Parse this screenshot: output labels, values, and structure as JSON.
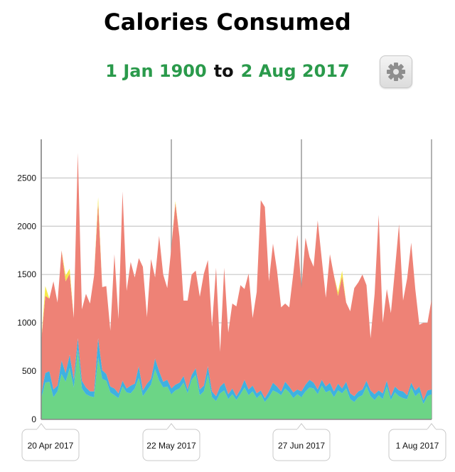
{
  "header": {
    "title": "Calories Consumed",
    "start_date": "1 Jan 1900",
    "connector": "to",
    "end_date": "2 Aug 2017"
  },
  "settings_button": {
    "icon": "gear-icon"
  },
  "colors": {
    "date_text": "#2a9a4b",
    "series_green": "#6cd586",
    "series_blue": "#3fb1e0",
    "series_red": "#ee8276",
    "series_yellow": "#f5ea4a",
    "grid": "#c9c9c9"
  },
  "chart_data": {
    "type": "area",
    "stacked": true,
    "grid": true,
    "ylim": [
      0,
      2900
    ],
    "yticks": [
      0,
      500,
      1000,
      1500,
      2000,
      2500
    ],
    "date_labels": [
      {
        "text": "20 Apr 2017",
        "index": 0
      },
      {
        "text": "22 May 2017",
        "index": 32
      },
      {
        "text": "27 Jun 2017",
        "index": 64
      },
      {
        "text": "1 Aug 2017",
        "index": 96
      }
    ],
    "series": [
      {
        "color": "#6cd586",
        "values": [
          220,
          380,
          390,
          230,
          290,
          470,
          390,
          530,
          330,
          720,
          320,
          260,
          240,
          230,
          640,
          420,
          400,
          280,
          250,
          220,
          340,
          280,
          270,
          320,
          430,
          240,
          300,
          360,
          520,
          400,
          330,
          340,
          260,
          300,
          320,
          380,
          270,
          410,
          460,
          250,
          290,
          460,
          230,
          190,
          270,
          300,
          210,
          260,
          200,
          260,
          330,
          250,
          290,
          220,
          260,
          180,
          230,
          300,
          280,
          250,
          320,
          280,
          220,
          260,
          230,
          290,
          330,
          320,
          260,
          350,
          280,
          300,
          230,
          300,
          270,
          320,
          210,
          180,
          230,
          250,
          340,
          240,
          200,
          250,
          210,
          340,
          200,
          280,
          240,
          220,
          210,
          330,
          240,
          280,
          160,
          240,
          260
        ]
      },
      {
        "color": "#3fb1e0",
        "values": [
          40,
          100,
          110,
          80,
          60,
          140,
          90,
          140,
          80,
          120,
          80,
          70,
          50,
          60,
          200,
          90,
          70,
          60,
          70,
          50,
          60,
          40,
          80,
          50,
          120,
          60,
          70,
          60,
          110,
          100,
          60,
          70,
          60,
          60,
          60,
          70,
          40,
          50,
          70,
          60,
          60,
          90,
          60,
          50,
          70,
          80,
          50,
          60,
          40,
          50,
          80,
          60,
          60,
          50,
          40,
          40,
          60,
          80,
          60,
          40,
          70,
          60,
          60,
          50,
          60,
          70,
          80,
          60,
          50,
          60,
          60,
          80,
          60,
          70,
          50,
          70,
          60,
          60,
          60,
          60,
          60,
          60,
          60,
          50,
          60,
          60,
          40,
          60,
          60,
          70,
          40,
          50,
          60,
          60,
          40,
          60,
          50
        ]
      },
      {
        "color": "#ee8276",
        "values": [
          550,
          800,
          750,
          1120,
          860,
          1140,
          950,
          840,
          640,
          1920,
          740,
          970,
          910,
          1200,
          1400,
          860,
          910,
          580,
          1390,
          770,
          1960,
          1010,
          1280,
          1100,
          1120,
          1280,
          690,
          1240,
          840,
          1400,
          1110,
          950,
          1460,
          1880,
          1510,
          780,
          920,
          1040,
          1010,
          960,
          1160,
          1100,
          670,
          1330,
          360,
          1190,
          640,
          880,
          930,
          1080,
          940,
          1200,
          700,
          1050,
          1970,
          1980,
          1140,
          1440,
          1200,
          870,
          810,
          820,
          1230,
          1600,
          1070,
          1520,
          1270,
          1200,
          1750,
          1250,
          920,
          1330,
          1200,
          910,
          1160,
          820,
          850,
          1120,
          1130,
          1190,
          990,
          540,
          1040,
          1820,
          730,
          950,
          860,
          1210,
          1720,
          940,
          1210,
          1450,
          1050,
          640,
          800,
          700,
          930
        ]
      },
      {
        "color": "#f5ea4a",
        "values": [
          0,
          100,
          0,
          0,
          0,
          0,
          60,
          50,
          0,
          0,
          0,
          0,
          0,
          0,
          60,
          0,
          0,
          0,
          0,
          0,
          0,
          0,
          0,
          0,
          0,
          0,
          0,
          0,
          0,
          0,
          0,
          0,
          0,
          20,
          0,
          0,
          0,
          0,
          0,
          0,
          0,
          0,
          0,
          0,
          0,
          0,
          0,
          0,
          0,
          0,
          0,
          0,
          0,
          0,
          0,
          0,
          0,
          0,
          0,
          0,
          0,
          0,
          0,
          0,
          0,
          0,
          0,
          0,
          0,
          0,
          0,
          0,
          0,
          40,
          60,
          0,
          0,
          0,
          0,
          0,
          0,
          0,
          0,
          0,
          0,
          0,
          0,
          0,
          0,
          0,
          0,
          0,
          0,
          0,
          0,
          0,
          0
        ]
      }
    ]
  }
}
